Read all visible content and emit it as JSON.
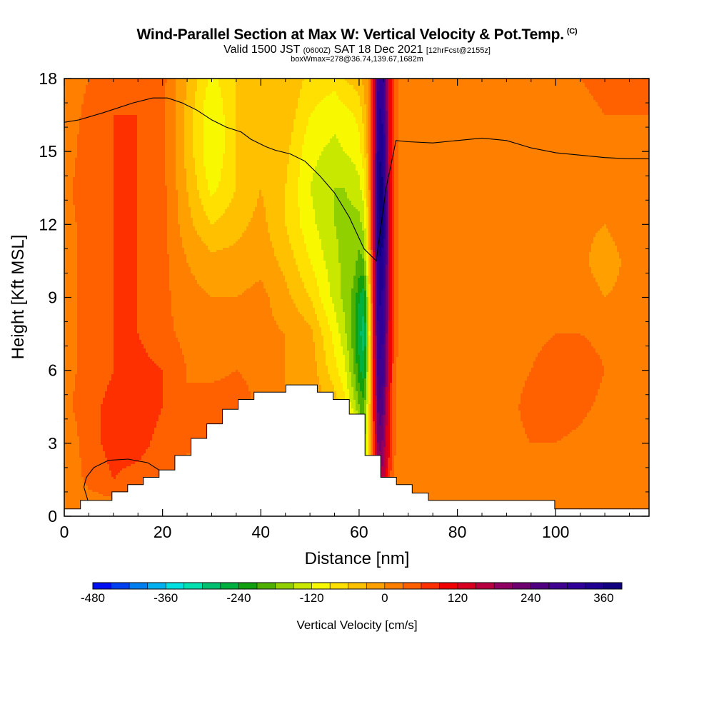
{
  "header": {
    "title": "Wind-Parallel Section at Max W: Vertical Velocity & Pot.Temp.",
    "copyright": "(C)",
    "valid_prefix": "Valid 1500 JST",
    "valid_zulu": "(0600Z)",
    "valid_date": "SAT 18 Dec 2021",
    "forecast_info": "[12hrFcst@2155z]",
    "box_info": "boxWmax=278@36.74,139.67,1682m"
  },
  "chart_data": {
    "type": "heatmap",
    "xlabel": "Distance [nm]",
    "ylabel": "Height [Kft MSL]",
    "xlim": [
      0,
      119
    ],
    "ylim": [
      0,
      18
    ],
    "xticks": [
      0,
      20,
      40,
      60,
      80,
      100
    ],
    "yticks": [
      0,
      3,
      6,
      9,
      12,
      15,
      18
    ],
    "colorbar": {
      "label": "Vertical Velocity [cm/s]",
      "min": -480,
      "max": 390,
      "step": 30,
      "ticks": [
        -480,
        -360,
        -240,
        -120,
        0,
        120,
        240,
        360
      ],
      "colors": [
        "#0010f0",
        "#0040f0",
        "#0080f0",
        "#00b0f0",
        "#00e0e0",
        "#00e0b0",
        "#00c070",
        "#00b040",
        "#10a010",
        "#50b000",
        "#90d000",
        "#c8e800",
        "#f8f800",
        "#ffe000",
        "#ffc000",
        "#ffa000",
        "#ff8000",
        "#ff6000",
        "#ff3000",
        "#f00000",
        "#d80020",
        "#b80040",
        "#900060",
        "#700070",
        "#500080",
        "#400090",
        "#300098",
        "#200090",
        "#100080"
      ]
    },
    "vertical_velocity_cm_s": {
      "x": [
        0,
        5,
        10,
        15,
        20,
        25,
        30,
        35,
        40,
        45,
        50,
        55,
        57,
        59,
        60,
        61,
        62,
        63,
        64,
        65,
        66,
        67,
        68,
        70,
        72,
        75,
        80,
        85,
        90,
        95,
        100,
        105,
        110,
        115,
        119
      ],
      "y": [
        0,
        1.5,
        3,
        4.5,
        6,
        7.5,
        9,
        10.5,
        12,
        13.5,
        15,
        16.5,
        18
      ],
      "z": [
        [
          0,
          0,
          0,
          0,
          0,
          0,
          0,
          0,
          0,
          0,
          0,
          0,
          0,
          0,
          -120,
          -140,
          -60,
          60,
          150,
          120,
          60,
          20,
          10,
          0,
          0,
          0,
          0,
          0,
          0,
          0,
          0,
          0,
          0,
          0,
          0
        ],
        [
          0,
          40,
          60,
          50,
          40,
          30,
          0,
          0,
          0,
          0,
          0,
          0,
          0,
          0,
          -120,
          -150,
          -60,
          60,
          180,
          160,
          80,
          30,
          10,
          0,
          0,
          0,
          0,
          0,
          0,
          0,
          0,
          0,
          0,
          0,
          0
        ],
        [
          0,
          50,
          70,
          70,
          50,
          30,
          40,
          30,
          0,
          0,
          0,
          0,
          0,
          0,
          -150,
          -170,
          -60,
          80,
          230,
          200,
          100,
          40,
          20,
          0,
          0,
          0,
          0,
          0,
          20,
          30,
          30,
          20,
          0,
          0,
          0
        ],
        [
          20,
          50,
          70,
          80,
          60,
          30,
          50,
          50,
          20,
          0,
          0,
          -40,
          -80,
          -140,
          -180,
          -200,
          -80,
          100,
          270,
          240,
          110,
          40,
          20,
          0,
          0,
          0,
          0,
          10,
          20,
          40,
          50,
          40,
          20,
          10,
          10
        ],
        [
          20,
          40,
          60,
          70,
          60,
          30,
          20,
          30,
          20,
          0,
          -10,
          -80,
          -110,
          -180,
          -230,
          -260,
          -100,
          120,
          300,
          280,
          140,
          50,
          20,
          10,
          0,
          0,
          10,
          20,
          20,
          30,
          50,
          50,
          30,
          20,
          20
        ],
        [
          20,
          40,
          60,
          60,
          40,
          20,
          10,
          10,
          10,
          0,
          -20,
          -100,
          -140,
          -200,
          -260,
          -290,
          -120,
          130,
          320,
          300,
          150,
          60,
          30,
          10,
          0,
          0,
          10,
          20,
          10,
          20,
          30,
          30,
          20,
          20,
          20
        ],
        [
          20,
          40,
          60,
          60,
          40,
          10,
          0,
          0,
          10,
          -20,
          -60,
          -130,
          -160,
          -190,
          -240,
          -260,
          -100,
          140,
          340,
          320,
          160,
          60,
          30,
          10,
          0,
          0,
          10,
          20,
          0,
          10,
          20,
          20,
          0,
          10,
          10
        ],
        [
          20,
          40,
          60,
          60,
          40,
          0,
          -20,
          -20,
          -10,
          -40,
          -90,
          -140,
          -160,
          -170,
          -190,
          -180,
          -60,
          150,
          360,
          350,
          170,
          60,
          30,
          10,
          0,
          0,
          10,
          10,
          0,
          10,
          10,
          10,
          -20,
          10,
          20
        ],
        [
          20,
          40,
          60,
          60,
          40,
          -20,
          -60,
          -40,
          -20,
          -60,
          -110,
          -150,
          -160,
          -160,
          -160,
          -140,
          -40,
          160,
          380,
          370,
          170,
          60,
          30,
          10,
          0,
          10,
          10,
          10,
          0,
          10,
          10,
          10,
          0,
          20,
          20
        ],
        [
          20,
          50,
          60,
          60,
          40,
          -30,
          -100,
          -60,
          -30,
          -60,
          -120,
          -150,
          -150,
          -140,
          -130,
          -100,
          -20,
          160,
          380,
          360,
          160,
          60,
          30,
          10,
          0,
          10,
          20,
          10,
          0,
          10,
          10,
          10,
          10,
          20,
          20
        ],
        [
          10,
          50,
          60,
          60,
          40,
          -40,
          -120,
          -60,
          -30,
          -50,
          -110,
          -130,
          -120,
          -110,
          -100,
          -70,
          -10,
          150,
          360,
          340,
          150,
          60,
          30,
          20,
          10,
          20,
          20,
          20,
          10,
          10,
          10,
          10,
          10,
          20,
          20
        ],
        [
          10,
          40,
          60,
          60,
          40,
          -40,
          -120,
          -60,
          -30,
          -40,
          -90,
          -110,
          -100,
          -90,
          -80,
          -50,
          0,
          140,
          340,
          320,
          140,
          60,
          30,
          20,
          10,
          20,
          30,
          20,
          10,
          20,
          20,
          20,
          30,
          30,
          30
        ],
        [
          10,
          30,
          50,
          60,
          40,
          -30,
          -100,
          -60,
          -30,
          -30,
          -70,
          -80,
          -60,
          -50,
          -40,
          -20,
          10,
          130,
          320,
          300,
          130,
          60,
          30,
          20,
          10,
          20,
          30,
          30,
          20,
          20,
          20,
          30,
          40,
          40,
          40
        ]
      ]
    },
    "terrain_kft": {
      "x": [
        0,
        3.3,
        3.3,
        9.7,
        9.7,
        12.9,
        12.9,
        16.1,
        16.1,
        19.3,
        19.3,
        22.5,
        22.5,
        25.8,
        25.8,
        29.0,
        29.0,
        32.2,
        32.2,
        35.4,
        35.4,
        38.6,
        38.6,
        45.1,
        45.1,
        51.5,
        51.5,
        54.7,
        54.7,
        58.0,
        58.0,
        61.2,
        61.2,
        64.4,
        64.4,
        67.6,
        67.6,
        70.8,
        70.8,
        74.1,
        74.1,
        99.8,
        99.8,
        119
      ],
      "y": [
        0.3,
        0.3,
        0.65,
        0.65,
        1.0,
        1.0,
        1.3,
        1.3,
        1.6,
        1.6,
        1.9,
        1.9,
        2.5,
        2.5,
        3.2,
        3.2,
        3.8,
        3.8,
        4.4,
        4.4,
        4.8,
        4.8,
        5.1,
        5.1,
        5.4,
        5.4,
        5.1,
        5.1,
        4.8,
        4.8,
        4.2,
        4.2,
        2.5,
        2.5,
        1.6,
        1.6,
        1.3,
        1.3,
        0.95,
        0.95,
        0.65,
        0.65,
        0.3,
        0.3
      ]
    },
    "pot_temp_contours": [
      {
        "x": [
          0,
          3,
          8,
          14,
          18,
          21,
          24,
          27,
          30,
          33,
          36,
          38,
          41,
          43,
          46,
          49,
          52,
          55,
          58,
          61,
          63.5,
          65.5,
          67.5,
          70,
          75,
          80,
          85,
          90,
          95,
          100,
          105,
          110,
          115,
          119
        ],
        "y": [
          16.2,
          16.3,
          16.6,
          17.0,
          17.2,
          17.2,
          17.0,
          16.7,
          16.3,
          16.0,
          15.8,
          15.5,
          15.2,
          15.05,
          14.9,
          14.6,
          14.0,
          13.3,
          12.3,
          11.0,
          10.5,
          13.5,
          15.45,
          15.4,
          15.35,
          15.45,
          15.55,
          15.45,
          15.15,
          14.95,
          14.85,
          14.75,
          14.7,
          14.7
        ]
      },
      {
        "x": [
          4.8,
          4,
          4.5,
          6,
          9,
          13,
          17,
          19.3
        ],
        "y": [
          0.65,
          1.2,
          1.6,
          2.0,
          2.3,
          2.35,
          2.2,
          1.9
        ]
      }
    ]
  }
}
